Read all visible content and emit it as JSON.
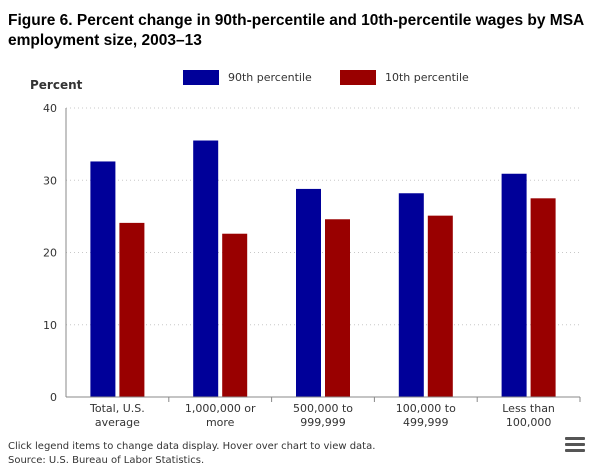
{
  "title": "Figure 6. Percent change in 90th-percentile and 10th-percentile wages by MSA employment size, 2003–13",
  "footer": {
    "note": "Click legend items to change data display. Hover over chart to view data.",
    "source": "Source: U.S. Bureau of Labor Statistics."
  },
  "menu_icon": "hamburger-menu-icon",
  "chart_data": {
    "type": "bar",
    "ylabel": "Percent",
    "ylim": [
      0,
      40
    ],
    "yticks": [
      0,
      10,
      20,
      30,
      40
    ],
    "grid": true,
    "legend_position": "top",
    "categories": [
      [
        "Total, U.S.",
        "average"
      ],
      [
        "1,000,000 or",
        "more"
      ],
      [
        "500,000 to",
        "999,999"
      ],
      [
        "100,000 to",
        "499,999"
      ],
      [
        "Less than",
        "100,000"
      ]
    ],
    "series": [
      {
        "name": "90th percentile",
        "color": "#000099",
        "values": [
          32.6,
          35.5,
          28.8,
          28.2,
          30.9
        ]
      },
      {
        "name": "10th percentile",
        "color": "#990000",
        "values": [
          24.1,
          22.6,
          24.6,
          25.1,
          27.5
        ]
      }
    ]
  }
}
